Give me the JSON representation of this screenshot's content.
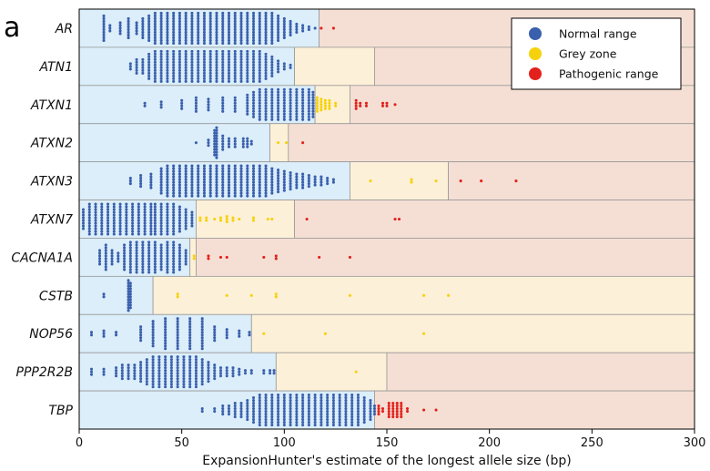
{
  "panel_letter": "a",
  "chart_data": {
    "type": "scatter",
    "title": "",
    "xlabel": "ExpansionHunter's estimate of the longest allele size (bp)",
    "ylabel": "",
    "xlim": [
      0,
      300
    ],
    "xticks": [
      0,
      50,
      100,
      150,
      200,
      250,
      300
    ],
    "legend": {
      "placement": "top-right",
      "entries": [
        {
          "name": "Normal range",
          "color": "#3a5fad"
        },
        {
          "name": "Grey zone",
          "color": "#f5d20c"
        },
        {
          "name": "Pathogenic range",
          "color": "#e3211c"
        }
      ]
    },
    "zone_colors": {
      "normal": "#dbeef9",
      "grey": "#fdf0d8",
      "pathogenic": "#f5dfd4"
    },
    "genes": [
      {
        "name": "AR",
        "normal_max": 117,
        "grey_max": 117,
        "normal_points": [
          [
            12,
            10
          ],
          [
            15,
            3
          ],
          [
            20,
            5
          ],
          [
            24,
            8
          ],
          [
            28,
            5
          ],
          [
            31,
            8
          ],
          [
            34,
            10
          ],
          [
            37,
            12
          ],
          [
            40,
            14
          ],
          [
            43,
            15
          ],
          [
            46,
            18
          ],
          [
            49,
            20
          ],
          [
            52,
            22
          ],
          [
            55,
            24
          ],
          [
            58,
            24
          ],
          [
            61,
            28
          ],
          [
            64,
            28
          ],
          [
            67,
            30
          ],
          [
            70,
            30
          ],
          [
            73,
            28
          ],
          [
            76,
            26
          ],
          [
            79,
            24
          ],
          [
            82,
            22
          ],
          [
            85,
            20
          ],
          [
            88,
            18
          ],
          [
            91,
            15
          ],
          [
            94,
            12
          ],
          [
            97,
            10
          ],
          [
            100,
            8
          ],
          [
            103,
            6
          ],
          [
            106,
            4
          ],
          [
            109,
            3
          ],
          [
            112,
            2
          ],
          [
            115,
            1
          ]
        ],
        "grey_points": [],
        "pathogenic_points": [
          [
            124,
            1
          ],
          [
            118,
            1
          ]
        ]
      },
      {
        "name": "ATN1",
        "normal_max": 105,
        "grey_max": 144,
        "normal_points": [
          [
            25,
            3
          ],
          [
            28,
            6
          ],
          [
            31,
            6
          ],
          [
            34,
            10
          ],
          [
            37,
            12
          ],
          [
            40,
            14
          ],
          [
            43,
            16
          ],
          [
            46,
            18
          ],
          [
            49,
            22
          ],
          [
            52,
            26
          ],
          [
            55,
            28
          ],
          [
            58,
            30
          ],
          [
            61,
            30
          ],
          [
            64,
            28
          ],
          [
            67,
            26
          ],
          [
            70,
            24
          ],
          [
            73,
            22
          ],
          [
            76,
            20
          ],
          [
            79,
            18
          ],
          [
            82,
            16
          ],
          [
            85,
            14
          ],
          [
            88,
            12
          ],
          [
            91,
            10
          ],
          [
            94,
            8
          ],
          [
            97,
            5
          ],
          [
            100,
            3
          ],
          [
            103,
            2
          ]
        ],
        "grey_points": [],
        "pathogenic_points": []
      },
      {
        "name": "ATXN1",
        "normal_max": 115,
        "grey_max": 132,
        "normal_points": [
          [
            32,
            2
          ],
          [
            40,
            3
          ],
          [
            50,
            4
          ],
          [
            57,
            6
          ],
          [
            63,
            5
          ],
          [
            70,
            6
          ],
          [
            76,
            6
          ],
          [
            82,
            8
          ],
          [
            85,
            10
          ],
          [
            88,
            12
          ],
          [
            91,
            14
          ],
          [
            94,
            18
          ],
          [
            97,
            22
          ],
          [
            100,
            26
          ],
          [
            103,
            28
          ],
          [
            106,
            26
          ],
          [
            109,
            22
          ],
          [
            112,
            18
          ],
          [
            114,
            10
          ]
        ],
        "grey_points": [
          [
            116,
            6
          ],
          [
            118,
            5
          ],
          [
            120,
            4
          ],
          [
            122,
            4
          ],
          [
            125,
            2
          ]
        ],
        "pathogenic_points": [
          [
            135,
            4
          ],
          [
            137,
            2
          ],
          [
            140,
            2
          ],
          [
            148,
            2
          ],
          [
            150,
            2
          ],
          [
            154,
            1
          ]
        ]
      },
      {
        "name": "ATXN2",
        "normal_max": 93,
        "grey_max": 102,
        "normal_points": [
          [
            57,
            1
          ],
          [
            63,
            3
          ],
          [
            66,
            10
          ],
          [
            67,
            14
          ],
          [
            70,
            6
          ],
          [
            73,
            4
          ],
          [
            76,
            4
          ],
          [
            80,
            4
          ],
          [
            82,
            4
          ],
          [
            84,
            2
          ]
        ],
        "grey_points": [
          [
            97,
            1
          ],
          [
            101,
            1
          ]
        ],
        "pathogenic_points": [
          [
            109,
            1
          ]
        ]
      },
      {
        "name": "ATXN3",
        "normal_max": 132,
        "grey_max": 180,
        "normal_points": [
          [
            25,
            3
          ],
          [
            30,
            5
          ],
          [
            35,
            6
          ],
          [
            40,
            10
          ],
          [
            43,
            12
          ],
          [
            46,
            14
          ],
          [
            49,
            18
          ],
          [
            52,
            20
          ],
          [
            55,
            22
          ],
          [
            58,
            24
          ],
          [
            61,
            26
          ],
          [
            64,
            28
          ],
          [
            67,
            28
          ],
          [
            70,
            26
          ],
          [
            73,
            24
          ],
          [
            76,
            22
          ],
          [
            79,
            20
          ],
          [
            82,
            18
          ],
          [
            85,
            16
          ],
          [
            88,
            14
          ],
          [
            91,
            12
          ],
          [
            94,
            10
          ],
          [
            97,
            9
          ],
          [
            100,
            8
          ],
          [
            103,
            7
          ],
          [
            106,
            6
          ],
          [
            109,
            6
          ],
          [
            112,
            5
          ],
          [
            115,
            4
          ],
          [
            118,
            4
          ],
          [
            121,
            3
          ],
          [
            124,
            2
          ]
        ],
        "grey_points": [
          [
            142,
            1
          ],
          [
            162,
            2
          ],
          [
            174,
            1
          ]
        ],
        "pathogenic_points": [
          [
            186,
            1
          ],
          [
            196,
            1
          ],
          [
            213,
            1
          ]
        ]
      },
      {
        "name": "ATXN7",
        "normal_max": 57,
        "grey_max": 105,
        "normal_points": [
          [
            2,
            8
          ],
          [
            5,
            12
          ],
          [
            8,
            14
          ],
          [
            11,
            12
          ],
          [
            14,
            14
          ],
          [
            17,
            14
          ],
          [
            20,
            16
          ],
          [
            23,
            18
          ],
          [
            26,
            16
          ],
          [
            29,
            18
          ],
          [
            32,
            20
          ],
          [
            35,
            24
          ],
          [
            37,
            28
          ],
          [
            40,
            22
          ],
          [
            43,
            16
          ],
          [
            46,
            12
          ],
          [
            49,
            10
          ],
          [
            52,
            8
          ],
          [
            55,
            6
          ]
        ],
        "grey_points": [
          [
            59,
            2
          ],
          [
            62,
            2
          ],
          [
            66,
            1
          ],
          [
            69,
            2
          ],
          [
            72,
            3
          ],
          [
            75,
            2
          ],
          [
            78,
            1
          ],
          [
            85,
            2
          ],
          [
            92,
            1
          ],
          [
            94,
            1
          ]
        ],
        "pathogenic_points": [
          [
            111,
            1
          ],
          [
            154,
            1
          ],
          [
            156,
            1
          ]
        ]
      },
      {
        "name": "CACNA1A",
        "normal_max": 54,
        "grey_max": 57,
        "normal_points": [
          [
            10,
            6
          ],
          [
            13,
            10
          ],
          [
            16,
            6
          ],
          [
            19,
            4
          ],
          [
            22,
            10
          ],
          [
            25,
            18
          ],
          [
            28,
            14
          ],
          [
            31,
            12
          ],
          [
            34,
            16
          ],
          [
            37,
            18
          ],
          [
            40,
            10
          ],
          [
            43,
            12
          ],
          [
            46,
            14
          ],
          [
            49,
            10
          ],
          [
            52,
            6
          ]
        ],
        "grey_points": [
          [
            56,
            2
          ]
        ],
        "pathogenic_points": [
          [
            63,
            2
          ],
          [
            69,
            1
          ],
          [
            72,
            1
          ],
          [
            90,
            1
          ],
          [
            96,
            2
          ],
          [
            117,
            1
          ],
          [
            132,
            1
          ]
        ]
      },
      {
        "name": "CSTB",
        "normal_max": 36,
        "grey_max": 300,
        "normal_points": [
          [
            12,
            2
          ],
          [
            24,
            14
          ],
          [
            25,
            10
          ]
        ],
        "grey_points": [
          [
            48,
            2
          ],
          [
            72,
            1
          ],
          [
            84,
            1
          ],
          [
            96,
            2
          ],
          [
            132,
            1
          ],
          [
            168,
            1
          ],
          [
            180,
            1
          ]
        ],
        "pathogenic_points": []
      },
      {
        "name": "NOP56",
        "normal_max": 84,
        "grey_max": 300,
        "normal_points": [
          [
            6,
            2
          ],
          [
            12,
            3
          ],
          [
            18,
            2
          ],
          [
            30,
            6
          ],
          [
            36,
            10
          ],
          [
            42,
            14
          ],
          [
            48,
            20
          ],
          [
            54,
            26
          ],
          [
            60,
            12
          ],
          [
            66,
            6
          ],
          [
            72,
            4
          ],
          [
            78,
            3
          ],
          [
            83,
            2
          ]
        ],
        "grey_points": [
          [
            90,
            1
          ],
          [
            120,
            1
          ],
          [
            168,
            1
          ]
        ],
        "pathogenic_points": []
      },
      {
        "name": "PPP2R2B",
        "normal_max": 96,
        "grey_max": 150,
        "normal_points": [
          [
            6,
            3
          ],
          [
            12,
            3
          ],
          [
            18,
            4
          ],
          [
            21,
            6
          ],
          [
            24,
            6
          ],
          [
            27,
            6
          ],
          [
            30,
            8
          ],
          [
            33,
            10
          ],
          [
            36,
            12
          ],
          [
            39,
            14
          ],
          [
            42,
            18
          ],
          [
            45,
            22
          ],
          [
            48,
            20
          ],
          [
            51,
            18
          ],
          [
            54,
            16
          ],
          [
            57,
            14
          ],
          [
            60,
            10
          ],
          [
            63,
            8
          ],
          [
            66,
            6
          ],
          [
            69,
            4
          ],
          [
            72,
            4
          ],
          [
            75,
            4
          ],
          [
            78,
            3
          ],
          [
            81,
            2
          ],
          [
            84,
            2
          ],
          [
            90,
            2
          ],
          [
            93,
            2
          ],
          [
            95,
            2
          ]
        ],
        "grey_points": [
          [
            135,
            1
          ]
        ],
        "pathogenic_points": []
      },
      {
        "name": "TBP",
        "normal_max": 144,
        "grey_max": 144,
        "normal_points": [
          [
            60,
            2
          ],
          [
            66,
            2
          ],
          [
            70,
            4
          ],
          [
            73,
            4
          ],
          [
            76,
            6
          ],
          [
            79,
            6
          ],
          [
            82,
            8
          ],
          [
            85,
            10
          ],
          [
            88,
            12
          ],
          [
            91,
            14
          ],
          [
            94,
            16
          ],
          [
            97,
            18
          ],
          [
            100,
            20
          ],
          [
            103,
            20
          ],
          [
            106,
            24
          ],
          [
            109,
            30
          ],
          [
            112,
            26
          ],
          [
            115,
            24
          ],
          [
            118,
            22
          ],
          [
            121,
            20
          ],
          [
            124,
            18
          ],
          [
            127,
            18
          ],
          [
            130,
            16
          ],
          [
            133,
            14
          ],
          [
            136,
            12
          ],
          [
            139,
            10
          ],
          [
            142,
            8
          ],
          [
            144,
            4
          ]
        ],
        "grey_points": [],
        "pathogenic_points": [
          [
            146,
            4
          ],
          [
            148,
            2
          ],
          [
            151,
            6
          ],
          [
            153,
            6
          ],
          [
            155,
            6
          ],
          [
            157,
            6
          ],
          [
            160,
            2
          ],
          [
            168,
            1
          ],
          [
            174,
            1
          ]
        ]
      }
    ]
  }
}
